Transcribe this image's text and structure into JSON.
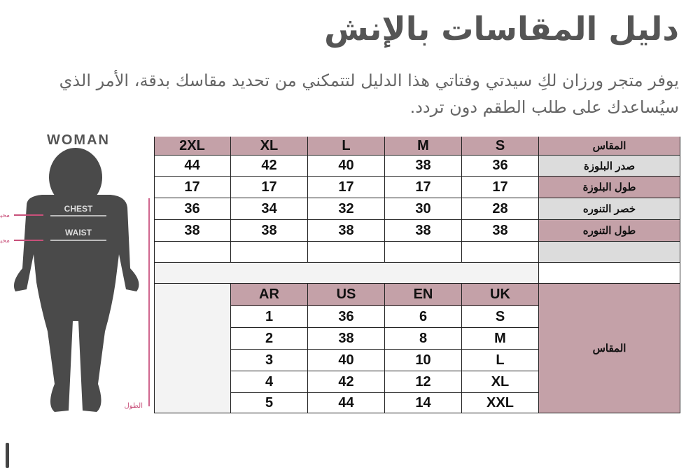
{
  "title": "دليل المقاسات بالإنش",
  "description": "يوفر متجر ورزان لكِ سيدتي وفتاتي هذا الدليل لتتمكني من تحديد مقاسك بدقة، الأمر الذي سيُساعدك على طلب الطقم دون تردد.",
  "figure": {
    "heading": "WOMAN",
    "chest": "CHEST",
    "waist": "WAIST",
    "side_chest": "محيط",
    "side_waist": "محيط",
    "length": "الطول"
  },
  "colors": {
    "header": "#c4a1a8",
    "gray": "#dcdcdc"
  },
  "size_table": {
    "corner": "المقاس",
    "sizes": [
      "2XL",
      "XL",
      "L",
      "M",
      "S"
    ],
    "rows": [
      {
        "label": "صدر البلوزة",
        "values": [
          "44",
          "42",
          "40",
          "38",
          "36"
        ]
      },
      {
        "label": "طول البلوزة",
        "values": [
          "17",
          "17",
          "17",
          "17",
          "17"
        ]
      },
      {
        "label": "خصر التنوره",
        "values": [
          "36",
          "34",
          "32",
          "30",
          "28"
        ]
      },
      {
        "label": "طول التنوره",
        "values": [
          "38",
          "38",
          "38",
          "38",
          "38"
        ]
      }
    ]
  },
  "conversion_table": {
    "label": "المقاس",
    "headers": [
      "AR",
      "US",
      "EN",
      "UK"
    ],
    "rows": [
      [
        "1",
        "36",
        "6",
        "S"
      ],
      [
        "2",
        "38",
        "8",
        "M"
      ],
      [
        "3",
        "40",
        "10",
        "L"
      ],
      [
        "4",
        "42",
        "12",
        "XL"
      ],
      [
        "5",
        "44",
        "14",
        "XXL"
      ]
    ]
  }
}
